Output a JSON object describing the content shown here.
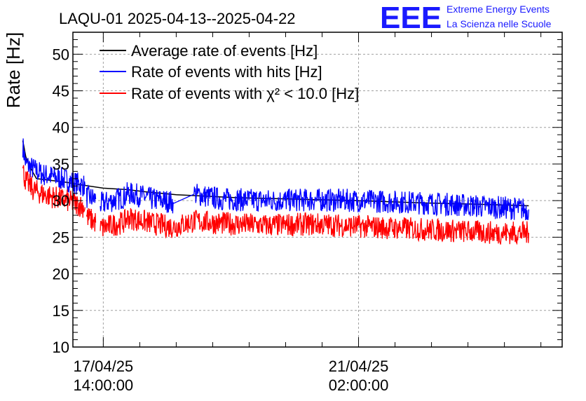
{
  "title": "LAQU-01 2025-04-13--2025-04-22",
  "logo": {
    "mark": "EEE",
    "line1": "Extreme Energy Events",
    "line2": "La Scienza nelle Scuole"
  },
  "chart_data": {
    "type": "line",
    "title": "LAQU-01 2025-04-13--2025-04-22",
    "xlabel": "",
    "ylabel": "Rate [Hz]",
    "ylim": [
      10,
      53
    ],
    "xlim_hours": [
      -94,
      67
    ],
    "x_unit": "hours relative to 21/04/25 02:00:00",
    "yticks": [
      "10",
      "15",
      "20",
      "25",
      "30",
      "35",
      "40",
      "45",
      "50"
    ],
    "xticks": [
      {
        "hour": -84,
        "line1": "17/04/25",
        "line2": "14:00:00"
      },
      {
        "hour": 0,
        "line1": "21/04/25",
        "line2": "02:00:00"
      }
    ],
    "grid": true,
    "legend_position": "top-left",
    "series": [
      {
        "name": "Average rate of events [Hz]",
        "color": "#000000",
        "segments": [
          [
            [
              -110.5,
              38.2
            ],
            [
              -109.5,
              36.0
            ],
            [
              -108,
              34.5
            ],
            [
              -106,
              33.0
            ],
            [
              -96,
              32.5
            ],
            [
              -92,
              32.2
            ],
            [
              -84,
              31.7
            ],
            [
              -76,
              31.5
            ],
            [
              -70,
              31.2
            ],
            [
              -60,
              30.8
            ],
            [
              -40,
              30.4
            ],
            [
              -20,
              30.2
            ],
            [
              0,
              30.0
            ],
            [
              20,
              29.7
            ],
            [
              40,
              29.5
            ],
            [
              56,
              29.3
            ]
          ]
        ]
      },
      {
        "name": "Rate of events with hits [Hz]",
        "color": "#0000ff",
        "segments": [
          [
            [
              -110.5,
              37.5
            ],
            [
              -109.5,
              35.0
            ],
            [
              -107,
              34.3
            ],
            [
              -104,
              33.6
            ],
            [
              -96,
              32.8
            ],
            [
              -90,
              32.0
            ]
          ],
          [
            [
              -89.5,
              30.5
            ],
            [
              -86.5,
              30.2
            ]
          ],
          [
            [
              -85,
              29.5
            ],
            [
              -77,
              30.5
            ],
            [
              -76,
              31.0
            ],
            [
              -72,
              30.7
            ],
            [
              -68,
              30.2
            ],
            [
              -64,
              30.0
            ],
            [
              -61,
              29.8
            ]
          ],
          [
            [
              -61,
              29.6
            ],
            [
              -54,
              30.9
            ],
            [
              -45,
              30.2
            ],
            [
              -30,
              30.0
            ],
            [
              -15,
              30.1
            ],
            [
              0,
              30.0
            ],
            [
              15,
              29.8
            ],
            [
              30,
              29.5
            ],
            [
              45,
              29.1
            ],
            [
              56,
              28.8
            ]
          ]
        ]
      },
      {
        "name": "Rate of events with χ² < 10.0 [Hz]",
        "color": "#ff0000",
        "segments": [
          [
            [
              -110.5,
              34.2
            ],
            [
              -109.5,
              32.7
            ],
            [
              -107,
              31.5
            ],
            [
              -104,
              30.9
            ],
            [
              -96,
              30.0
            ],
            [
              -90,
              29.1
            ]
          ],
          [
            [
              -89.5,
              27.8
            ],
            [
              -86.5,
              27.0
            ]
          ],
          [
            [
              -85,
              26.2
            ],
            [
              -77,
              27.1
            ],
            [
              -76,
              27.7
            ],
            [
              -72,
              27.3
            ],
            [
              -68,
              26.9
            ],
            [
              -64,
              26.6
            ],
            [
              -61,
              26.4
            ]
          ],
          [
            [
              -61,
              26.4
            ],
            [
              -54,
              27.2
            ],
            [
              -45,
              26.9
            ],
            [
              -30,
              26.6
            ],
            [
              -15,
              26.8
            ],
            [
              0,
              26.5
            ],
            [
              15,
              26.2
            ],
            [
              30,
              25.9
            ],
            [
              45,
              25.6
            ],
            [
              56,
              25.6
            ]
          ]
        ]
      }
    ]
  }
}
